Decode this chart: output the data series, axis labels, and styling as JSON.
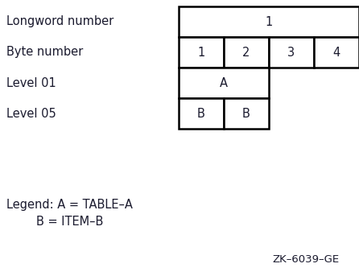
{
  "bg_color": "#ffffff",
  "text_color": "#1a1a2e",
  "row_labels": [
    "Longword number",
    "Byte number",
    "Level 01",
    "Level 05"
  ],
  "legend_line1": "Legend: A = TABLE–A",
  "legend_line2": "        B = ITEM–B",
  "footer": "ZK–6039–GE",
  "grid_lw": 1.6,
  "font_size": 10.5,
  "cell_lw": 1.8,
  "label_color": "#1a1a2e",
  "cell_text_color": "#1a1a2e",
  "footer_color": "#1a1a2e"
}
